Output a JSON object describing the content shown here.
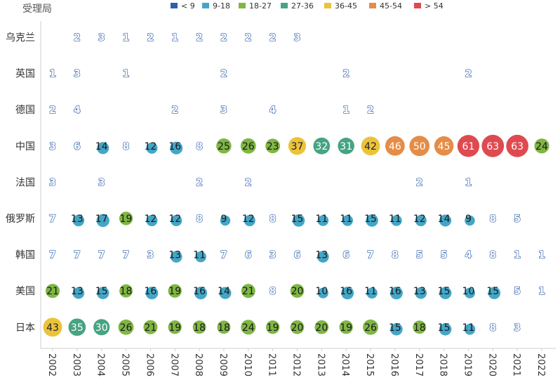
{
  "chart_data": {
    "type": "scatter",
    "subtype": "bubble-grid",
    "ylabel": "受理局",
    "legend": {
      "placement": "top",
      "entries": [
        {
          "label": "< 9",
          "color": "#2e5fac"
        },
        {
          "label": "9-18",
          "color": "#44a6c6"
        },
        {
          "label": "18-27",
          "color": "#7fb644"
        },
        {
          "label": "27-36",
          "color": "#47a382"
        },
        {
          "label": "36-45",
          "color": "#ebc33a"
        },
        {
          "label": "45-54",
          "color": "#e58c47"
        },
        {
          "label": "> 54",
          "color": "#df4a51"
        }
      ]
    },
    "years": [
      "2002",
      "2003",
      "2004",
      "2005",
      "2006",
      "2007",
      "2008",
      "2009",
      "2010",
      "2011",
      "2012",
      "2013",
      "2014",
      "2015",
      "2016",
      "2017",
      "2018",
      "2019",
      "2020",
      "2021",
      "2022"
    ],
    "offices": [
      "乌克兰",
      "英国",
      "德国",
      "中国",
      "法国",
      "俄罗斯",
      "韩国",
      "美国",
      "日本"
    ],
    "series": [
      {
        "name": "乌克兰",
        "values": [
          null,
          2,
          3,
          1,
          2,
          1,
          2,
          2,
          2,
          2,
          3,
          null,
          null,
          null,
          null,
          null,
          null,
          null,
          null,
          null,
          null
        ]
      },
      {
        "name": "英国",
        "values": [
          1,
          3,
          null,
          1,
          null,
          null,
          null,
          2,
          null,
          null,
          null,
          null,
          2,
          null,
          null,
          null,
          null,
          2,
          null,
          null,
          null
        ]
      },
      {
        "name": "德国",
        "values": [
          2,
          4,
          null,
          null,
          null,
          2,
          null,
          3,
          null,
          4,
          null,
          null,
          1,
          2,
          null,
          null,
          null,
          null,
          null,
          null,
          null
        ]
      },
      {
        "name": "中国",
        "values": [
          3,
          6,
          14,
          8,
          12,
          16,
          8,
          25,
          26,
          23,
          37,
          32,
          31,
          42,
          46,
          50,
          45,
          61,
          63,
          63,
          24
        ]
      },
      {
        "name": "法国",
        "values": [
          3,
          null,
          3,
          null,
          null,
          null,
          2,
          null,
          2,
          null,
          null,
          null,
          null,
          null,
          null,
          2,
          null,
          1,
          null,
          null,
          null
        ]
      },
      {
        "name": "俄罗斯",
        "values": [
          7,
          13,
          17,
          19,
          12,
          12,
          8,
          9,
          12,
          8,
          15,
          11,
          11,
          15,
          11,
          12,
          14,
          9,
          8,
          5,
          null
        ]
      },
      {
        "name": "韩国",
        "values": [
          7,
          7,
          7,
          7,
          3,
          13,
          11,
          7,
          6,
          3,
          6,
          13,
          6,
          7,
          8,
          5,
          5,
          4,
          8,
          1,
          1
        ]
      },
      {
        "name": "美国",
        "values": [
          21,
          13,
          15,
          18,
          16,
          19,
          16,
          14,
          21,
          8,
          20,
          10,
          16,
          11,
          16,
          13,
          15,
          10,
          15,
          5,
          1
        ]
      },
      {
        "name": "日本",
        "values": [
          43,
          35,
          30,
          26,
          21,
          19,
          18,
          18,
          24,
          19,
          20,
          20,
          19,
          26,
          15,
          18,
          15,
          11,
          8,
          3,
          null
        ]
      }
    ]
  }
}
